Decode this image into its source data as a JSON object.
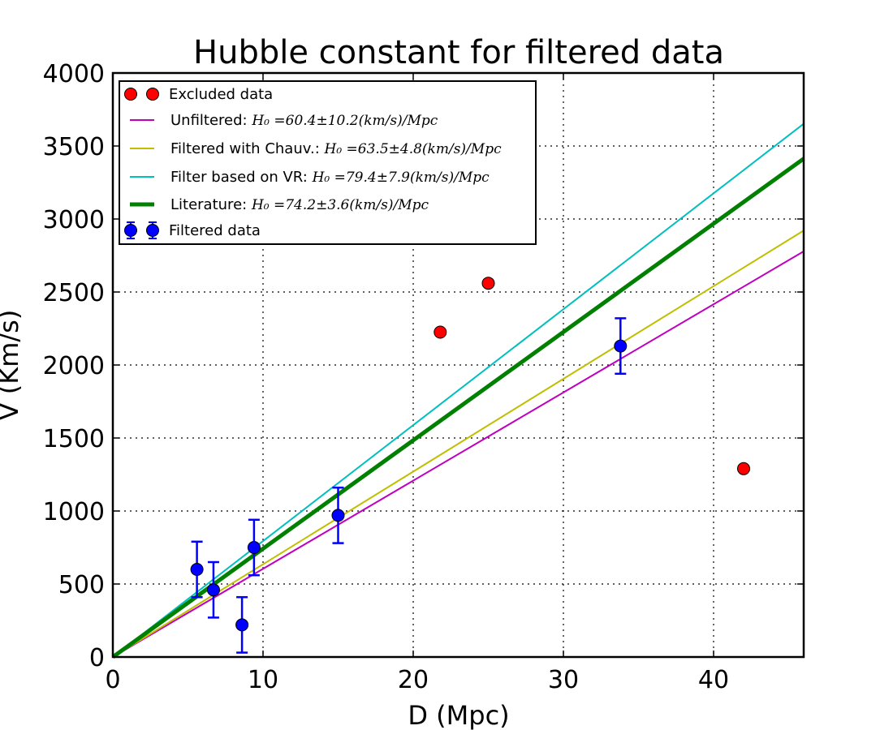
{
  "chart_data": {
    "type": "scatter",
    "title": "Hubble constant for filtered data",
    "xlabel": "D (Mpc)",
    "ylabel": "V (Km/s)",
    "xlim": [
      0,
      46
    ],
    "ylim": [
      0,
      4000
    ],
    "xticks": [
      0,
      10,
      20,
      30,
      40
    ],
    "yticks": [
      0,
      500,
      1000,
      1500,
      2000,
      2500,
      3000,
      3500,
      4000
    ],
    "grid": true,
    "legend_position": "top-left",
    "legend": [
      {
        "key": "excluded",
        "kind": "marker",
        "label": "Excluded data",
        "math": ""
      },
      {
        "key": "unfiltered",
        "kind": "line",
        "label": "Unfiltered: ",
        "math": "H₀ =60.4±10.2(km/s)/Mpc"
      },
      {
        "key": "chauv",
        "kind": "line",
        "label": "Filtered with Chauv.: ",
        "math": "H₀ =63.5±4.8(km/s)/Mpc"
      },
      {
        "key": "vr",
        "kind": "line",
        "label": "Filter based on VR: ",
        "math": "H₀ =79.4±7.9(km/s)/Mpc"
      },
      {
        "key": "literature",
        "kind": "line",
        "label": "Literature: ",
        "math": "H₀ =74.2±3.6(km/s)/Mpc"
      },
      {
        "key": "filtered",
        "kind": "errmarker",
        "label": "Filtered data",
        "math": ""
      }
    ],
    "lines": [
      {
        "key": "unfiltered",
        "slope": 60.4,
        "color": "#bf00bf",
        "width": 2
      },
      {
        "key": "chauv",
        "slope": 63.5,
        "color": "#bfbf00",
        "width": 2
      },
      {
        "key": "vr",
        "slope": 79.4,
        "color": "#00bfbf",
        "width": 2
      },
      {
        "key": "literature",
        "slope": 74.2,
        "color": "#008000",
        "width": 5
      }
    ],
    "excluded_points": [
      {
        "x": 21.8,
        "y": 2225
      },
      {
        "x": 25.0,
        "y": 2560
      },
      {
        "x": 42.0,
        "y": 1290
      }
    ],
    "filtered_points": [
      {
        "x": 5.6,
        "y": 600,
        "err": 190
      },
      {
        "x": 6.7,
        "y": 460,
        "err": 190
      },
      {
        "x": 8.6,
        "y": 220,
        "err": 190
      },
      {
        "x": 9.4,
        "y": 750,
        "err": 190
      },
      {
        "x": 15.0,
        "y": 970,
        "err": 190
      },
      {
        "x": 33.8,
        "y": 2130,
        "err": 190
      }
    ],
    "colors": {
      "excluded": "#ff0000",
      "filtered": "#0000ff"
    }
  }
}
